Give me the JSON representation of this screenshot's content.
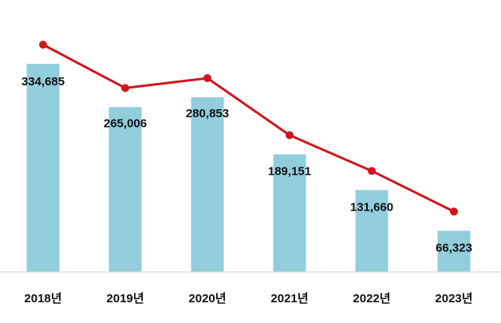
{
  "chart_data": {
    "type": "bar",
    "categories": [
      "2018년",
      "2019년",
      "2020년",
      "2021년",
      "2022년",
      "2023년"
    ],
    "series": [
      {
        "type": "bar",
        "values": [
          334685,
          265006,
          280853,
          189151,
          131660,
          66323
        ],
        "color": "#92cddc"
      },
      {
        "type": "line",
        "values": [
          334685,
          265006,
          280853,
          189151,
          131660,
          66323
        ],
        "color": "#d0161c"
      }
    ],
    "data_labels": [
      "334,685",
      "265,006",
      "280,853",
      "189,151",
      "131,660",
      "66,323"
    ],
    "title": "",
    "xlabel": "",
    "ylabel": "",
    "grid": false,
    "legend": "none"
  }
}
